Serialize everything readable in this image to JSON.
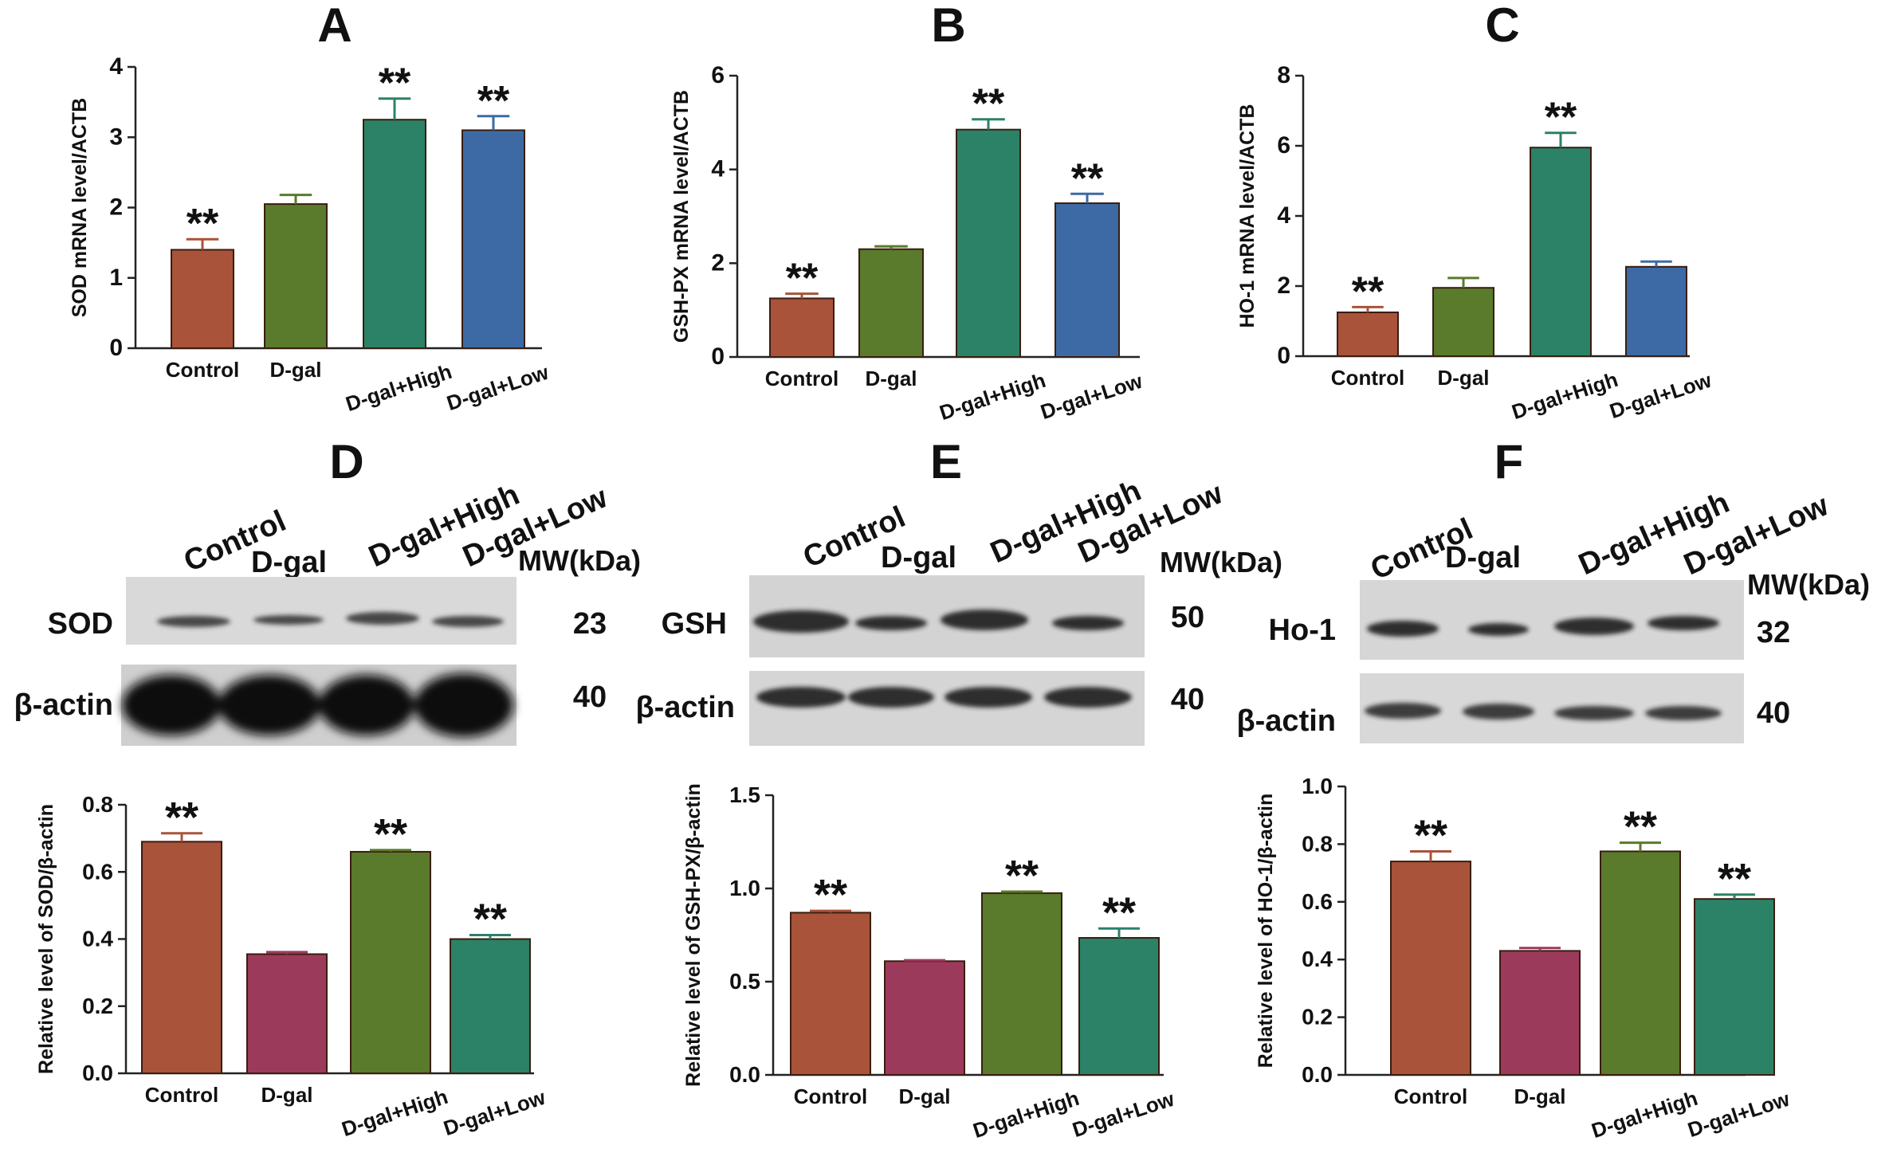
{
  "figure": {
    "panels": {
      "A": {
        "letter": "A"
      },
      "B": {
        "letter": "B"
      },
      "C": {
        "letter": "C"
      },
      "D": {
        "letter": "D",
        "blot": {
          "lanes": [
            "Control",
            "D-gal",
            "D-gal+High",
            "D-gal+Low"
          ],
          "mw_header": "MW(kDa)",
          "rows": [
            {
              "label": "SOD",
              "mw": "23"
            },
            {
              "label": "β-actin",
              "mw": "40"
            }
          ]
        }
      },
      "E": {
        "letter": "E",
        "blot": {
          "lanes": [
            "Control",
            "D-gal",
            "D-gal+High",
            "D-gal+Low"
          ],
          "mw_header": "MW(kDa)",
          "rows": [
            {
              "label": "GSH",
              "mw": "50"
            },
            {
              "label": "β-actin",
              "mw": "40"
            }
          ]
        }
      },
      "F": {
        "letter": "F",
        "blot": {
          "lanes": [
            "Control",
            "D-gal",
            "D-gal+High",
            "D-gal+Low"
          ],
          "mw_header": "MW(kDa)",
          "rows": [
            {
              "label": "Ho-1",
              "mw": "32"
            },
            {
              "label": "β-actin",
              "mw": "40"
            }
          ]
        }
      }
    },
    "colors": {
      "control": "#a8533a",
      "dgal_green": "#5a7a2c",
      "teal": "#2b8267",
      "blue": "#3d6aa4",
      "maroon": "#9c3a5c"
    }
  },
  "chart_data": [
    {
      "panel": "A",
      "type": "bar",
      "ylabel": "SOD mRNA level/ACTB",
      "categories": [
        "Control",
        "D-gal",
        "D-gal+High",
        "D-gal+Low"
      ],
      "values": [
        1.4,
        2.05,
        3.25,
        3.1
      ],
      "errors": [
        0.15,
        0.13,
        0.3,
        0.2
      ],
      "significance": [
        "**",
        "",
        "**",
        "**"
      ],
      "ylim": [
        0,
        4
      ],
      "yticks": [
        "0",
        "1",
        "2",
        "3",
        "4"
      ],
      "colors": [
        "#a8533a",
        "#5a7a2c",
        "#2b8267",
        "#3d6aa4"
      ]
    },
    {
      "panel": "B",
      "type": "bar",
      "ylabel": "GSH-PX mRNA level/ACTB",
      "categories": [
        "Control",
        "D-gal",
        "D-gal+High",
        "D-gal+Low"
      ],
      "values": [
        1.25,
        2.3,
        4.85,
        3.28
      ],
      "errors": [
        0.1,
        0.06,
        0.22,
        0.2
      ],
      "significance": [
        "**",
        "",
        "**",
        "**"
      ],
      "ylim": [
        0,
        6
      ],
      "yticks": [
        "0",
        "2",
        "4",
        "6"
      ],
      "colors": [
        "#a8533a",
        "#5a7a2c",
        "#2b8267",
        "#3d6aa4"
      ]
    },
    {
      "panel": "C",
      "type": "bar",
      "ylabel": "HO-1 mRNA level/ACTB",
      "categories": [
        "Control",
        "D-gal",
        "D-gal+High",
        "D-gal+Low"
      ],
      "values": [
        1.25,
        1.95,
        5.95,
        2.55
      ],
      "errors": [
        0.15,
        0.28,
        0.42,
        0.15
      ],
      "significance": [
        "**",
        "",
        "**",
        ""
      ],
      "ylim": [
        0,
        8
      ],
      "yticks": [
        "0",
        "2",
        "4",
        "6",
        "8"
      ],
      "colors": [
        "#a8533a",
        "#5a7a2c",
        "#2b8267",
        "#3d6aa4"
      ]
    },
    {
      "panel": "D",
      "type": "bar",
      "ylabel": "Relative level of SOD/β-actin",
      "categories": [
        "Control",
        "D-gal",
        "D-gal+High",
        "D-gal+Low"
      ],
      "values": [
        0.69,
        0.355,
        0.66,
        0.4
      ],
      "errors": [
        0.025,
        0.006,
        0.005,
        0.012
      ],
      "significance": [
        "**",
        "",
        "**",
        "**"
      ],
      "ylim": [
        0,
        0.8
      ],
      "yticks": [
        "0.0",
        "0.2",
        "0.4",
        "0.6",
        "0.8"
      ],
      "colors": [
        "#a8533a",
        "#9c3a5c",
        "#5a7a2c",
        "#2b8267"
      ]
    },
    {
      "panel": "E",
      "type": "bar",
      "ylabel": "Relative level of GSH-PX/β-actin",
      "categories": [
        "Control",
        "D-gal",
        "D-gal+High",
        "D-gal+Low"
      ],
      "values": [
        0.87,
        0.61,
        0.975,
        0.735
      ],
      "errors": [
        0.01,
        0.005,
        0.008,
        0.05
      ],
      "significance": [
        "**",
        "",
        "**",
        "**"
      ],
      "ylim": [
        0,
        1.5
      ],
      "yticks": [
        "0.0",
        "0.5",
        "1.0",
        "1.5"
      ],
      "colors": [
        "#a8533a",
        "#9c3a5c",
        "#5a7a2c",
        "#2b8267"
      ]
    },
    {
      "panel": "F",
      "type": "bar",
      "ylabel": "Relative level of HO-1/β-actin",
      "categories": [
        "Control",
        "D-gal",
        "D-gal+High",
        "D-gal+Low"
      ],
      "values": [
        0.74,
        0.43,
        0.775,
        0.61
      ],
      "errors": [
        0.035,
        0.01,
        0.03,
        0.015
      ],
      "significance": [
        "**",
        "",
        "**",
        "**"
      ],
      "ylim": [
        0,
        1.0
      ],
      "yticks": [
        "0.0",
        "0.2",
        "0.4",
        "0.6",
        "0.8",
        "1.0"
      ],
      "colors": [
        "#a8533a",
        "#9c3a5c",
        "#5a7a2c",
        "#2b8267"
      ]
    }
  ]
}
